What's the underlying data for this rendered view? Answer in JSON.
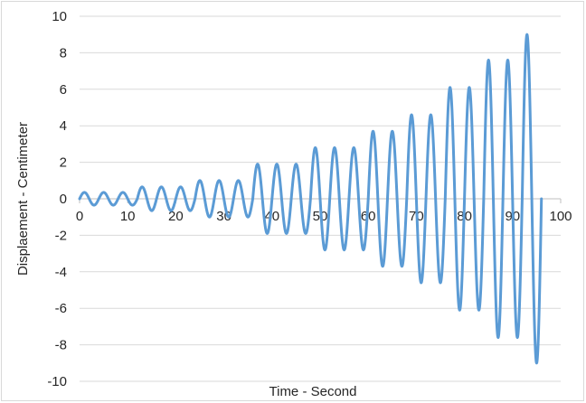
{
  "chart_data": {
    "type": "line",
    "xlabel": "Time - Second",
    "ylabel": "Displaement - Centimeter",
    "xlim": [
      0,
      100
    ],
    "ylim": [
      -10,
      10
    ],
    "x_ticks": [
      0,
      10,
      20,
      30,
      40,
      50,
      60,
      70,
      80,
      90,
      100
    ],
    "y_ticks": [
      10,
      8,
      6,
      4,
      2,
      0,
      -2,
      -4,
      -6,
      -8,
      -10
    ],
    "grid": "horizontal",
    "legend": "none",
    "series_color": "#5b9bd5",
    "series": [
      {
        "period": 4,
        "x_start": 0,
        "x_end": 96,
        "segments": [
          {
            "x_from": 0,
            "x_to": 12,
            "amplitude": 0.35
          },
          {
            "x_from": 12,
            "x_to": 24,
            "amplitude": 0.65
          },
          {
            "x_from": 24,
            "x_to": 36,
            "amplitude": 1.0
          },
          {
            "x_from": 36,
            "x_to": 48,
            "amplitude": 1.9
          },
          {
            "x_from": 48,
            "x_to": 60,
            "amplitude": 2.8
          },
          {
            "x_from": 60,
            "x_to": 68,
            "amplitude": 3.7
          },
          {
            "x_from": 68,
            "x_to": 76,
            "amplitude": 4.6
          },
          {
            "x_from": 76,
            "x_to": 84,
            "amplitude": 6.1
          },
          {
            "x_from": 84,
            "x_to": 92,
            "amplitude": 7.6
          },
          {
            "x_from": 92,
            "x_to": 96,
            "amplitude": 9.0
          }
        ]
      }
    ]
  }
}
